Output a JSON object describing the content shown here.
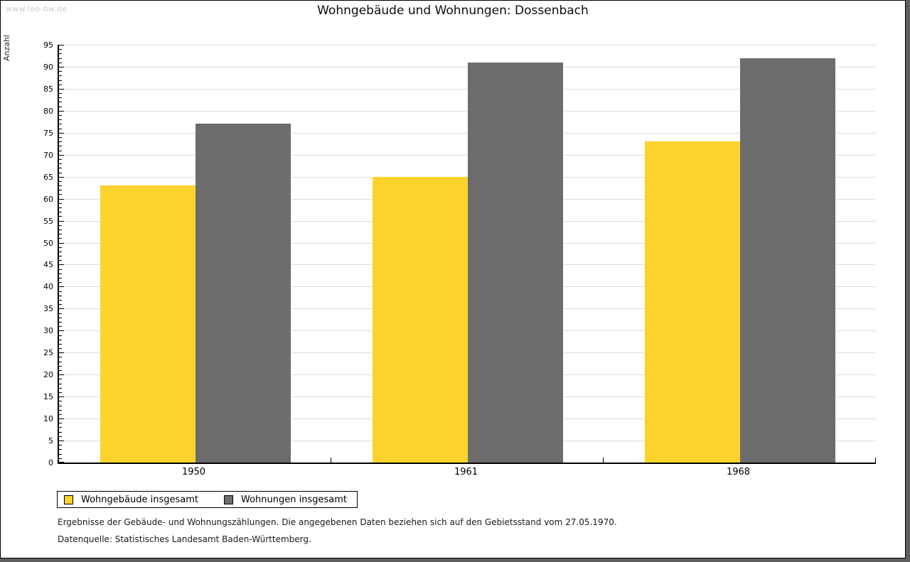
{
  "watermark": "www.leo-bw.de",
  "title": "Wohngebäude und Wohnungen: Dossenbach",
  "chart_data": {
    "type": "bar",
    "title": "Wohngebäude und Wohnungen: Dossenbach",
    "xlabel": "",
    "ylabel": "Anzahl",
    "categories": [
      "1950",
      "1961",
      "1968"
    ],
    "series": [
      {
        "name": "Wohngebäude insgesamt",
        "color": "#fcd32d",
        "values": [
          63,
          65,
          73
        ]
      },
      {
        "name": "Wohnungen insgesamt",
        "color": "#6c6c6c",
        "values": [
          77,
          91,
          92
        ]
      }
    ],
    "ylim": [
      0,
      95
    ],
    "ytick_step": 5,
    "minor_tick_step": 1,
    "grid": true,
    "gridline_color": "#dedede",
    "legend_position": "bottom-left"
  },
  "footer": {
    "line1": "Ergebnisse der Gebäude- und Wohnungszählungen. Die angegebenen Daten beziehen sich auf den Gebietsstand vom 27.05.1970.",
    "line2": "Datenquelle: Statistisches Landesamt Baden-Württemberg."
  }
}
